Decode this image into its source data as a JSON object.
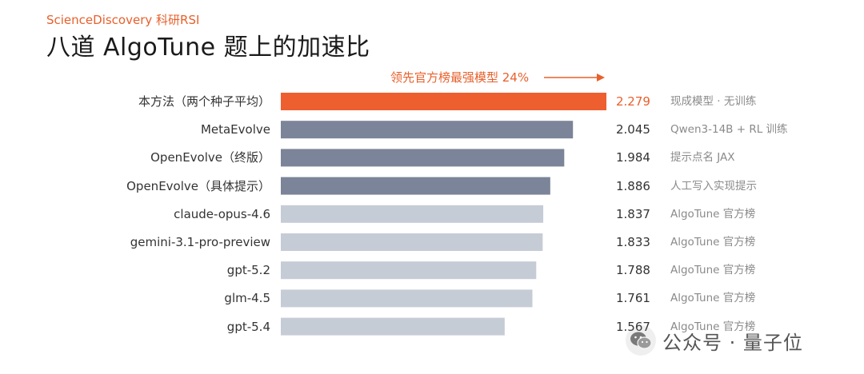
{
  "header": {
    "brand": "ScienceDiscovery 科研RSI",
    "title": "八道 AlgoTune 题上的加速比"
  },
  "callout": {
    "text": "领先官方榜最强模型 24%"
  },
  "colors": {
    "highlight": "#ee5f2f",
    "trained": "#7b8498",
    "baseline": "#c6ccd6",
    "accent_text": "#e8602c"
  },
  "chart_data": {
    "type": "bar",
    "orientation": "horizontal",
    "xlim": [
      0,
      2.279
    ],
    "categories": [
      "本方法（两个种子平均）",
      "MetaEvolve",
      "OpenEvolve（终版）",
      "OpenEvolve（具体提示）",
      "claude-opus-4.6",
      "gemini-3.1-pro-preview",
      "gpt-5.2",
      "glm-4.5",
      "gpt-5.4"
    ],
    "values": [
      2.279,
      2.045,
      1.984,
      1.886,
      1.837,
      1.833,
      1.788,
      1.761,
      1.567
    ],
    "value_labels": [
      "2.279",
      "2.045",
      "1.984",
      "1.886",
      "1.837",
      "1.833",
      "1.788",
      "1.761",
      "1.567"
    ],
    "notes": [
      "现成模型 · 无训练",
      "Qwen3-14B + RL 训练",
      "提示点名 JAX",
      "人工写入实现提示",
      "AlgoTune 官方榜",
      "AlgoTune 官方榜",
      "AlgoTune 官方榜",
      "AlgoTune 官方榜",
      "AlgoTune 官方榜"
    ],
    "groups": [
      "highlight",
      "trained",
      "trained",
      "trained",
      "baseline",
      "baseline",
      "baseline",
      "baseline",
      "baseline"
    ]
  },
  "watermark": {
    "text": "公众号 · 量子位",
    "icon": "wechat-icon"
  }
}
